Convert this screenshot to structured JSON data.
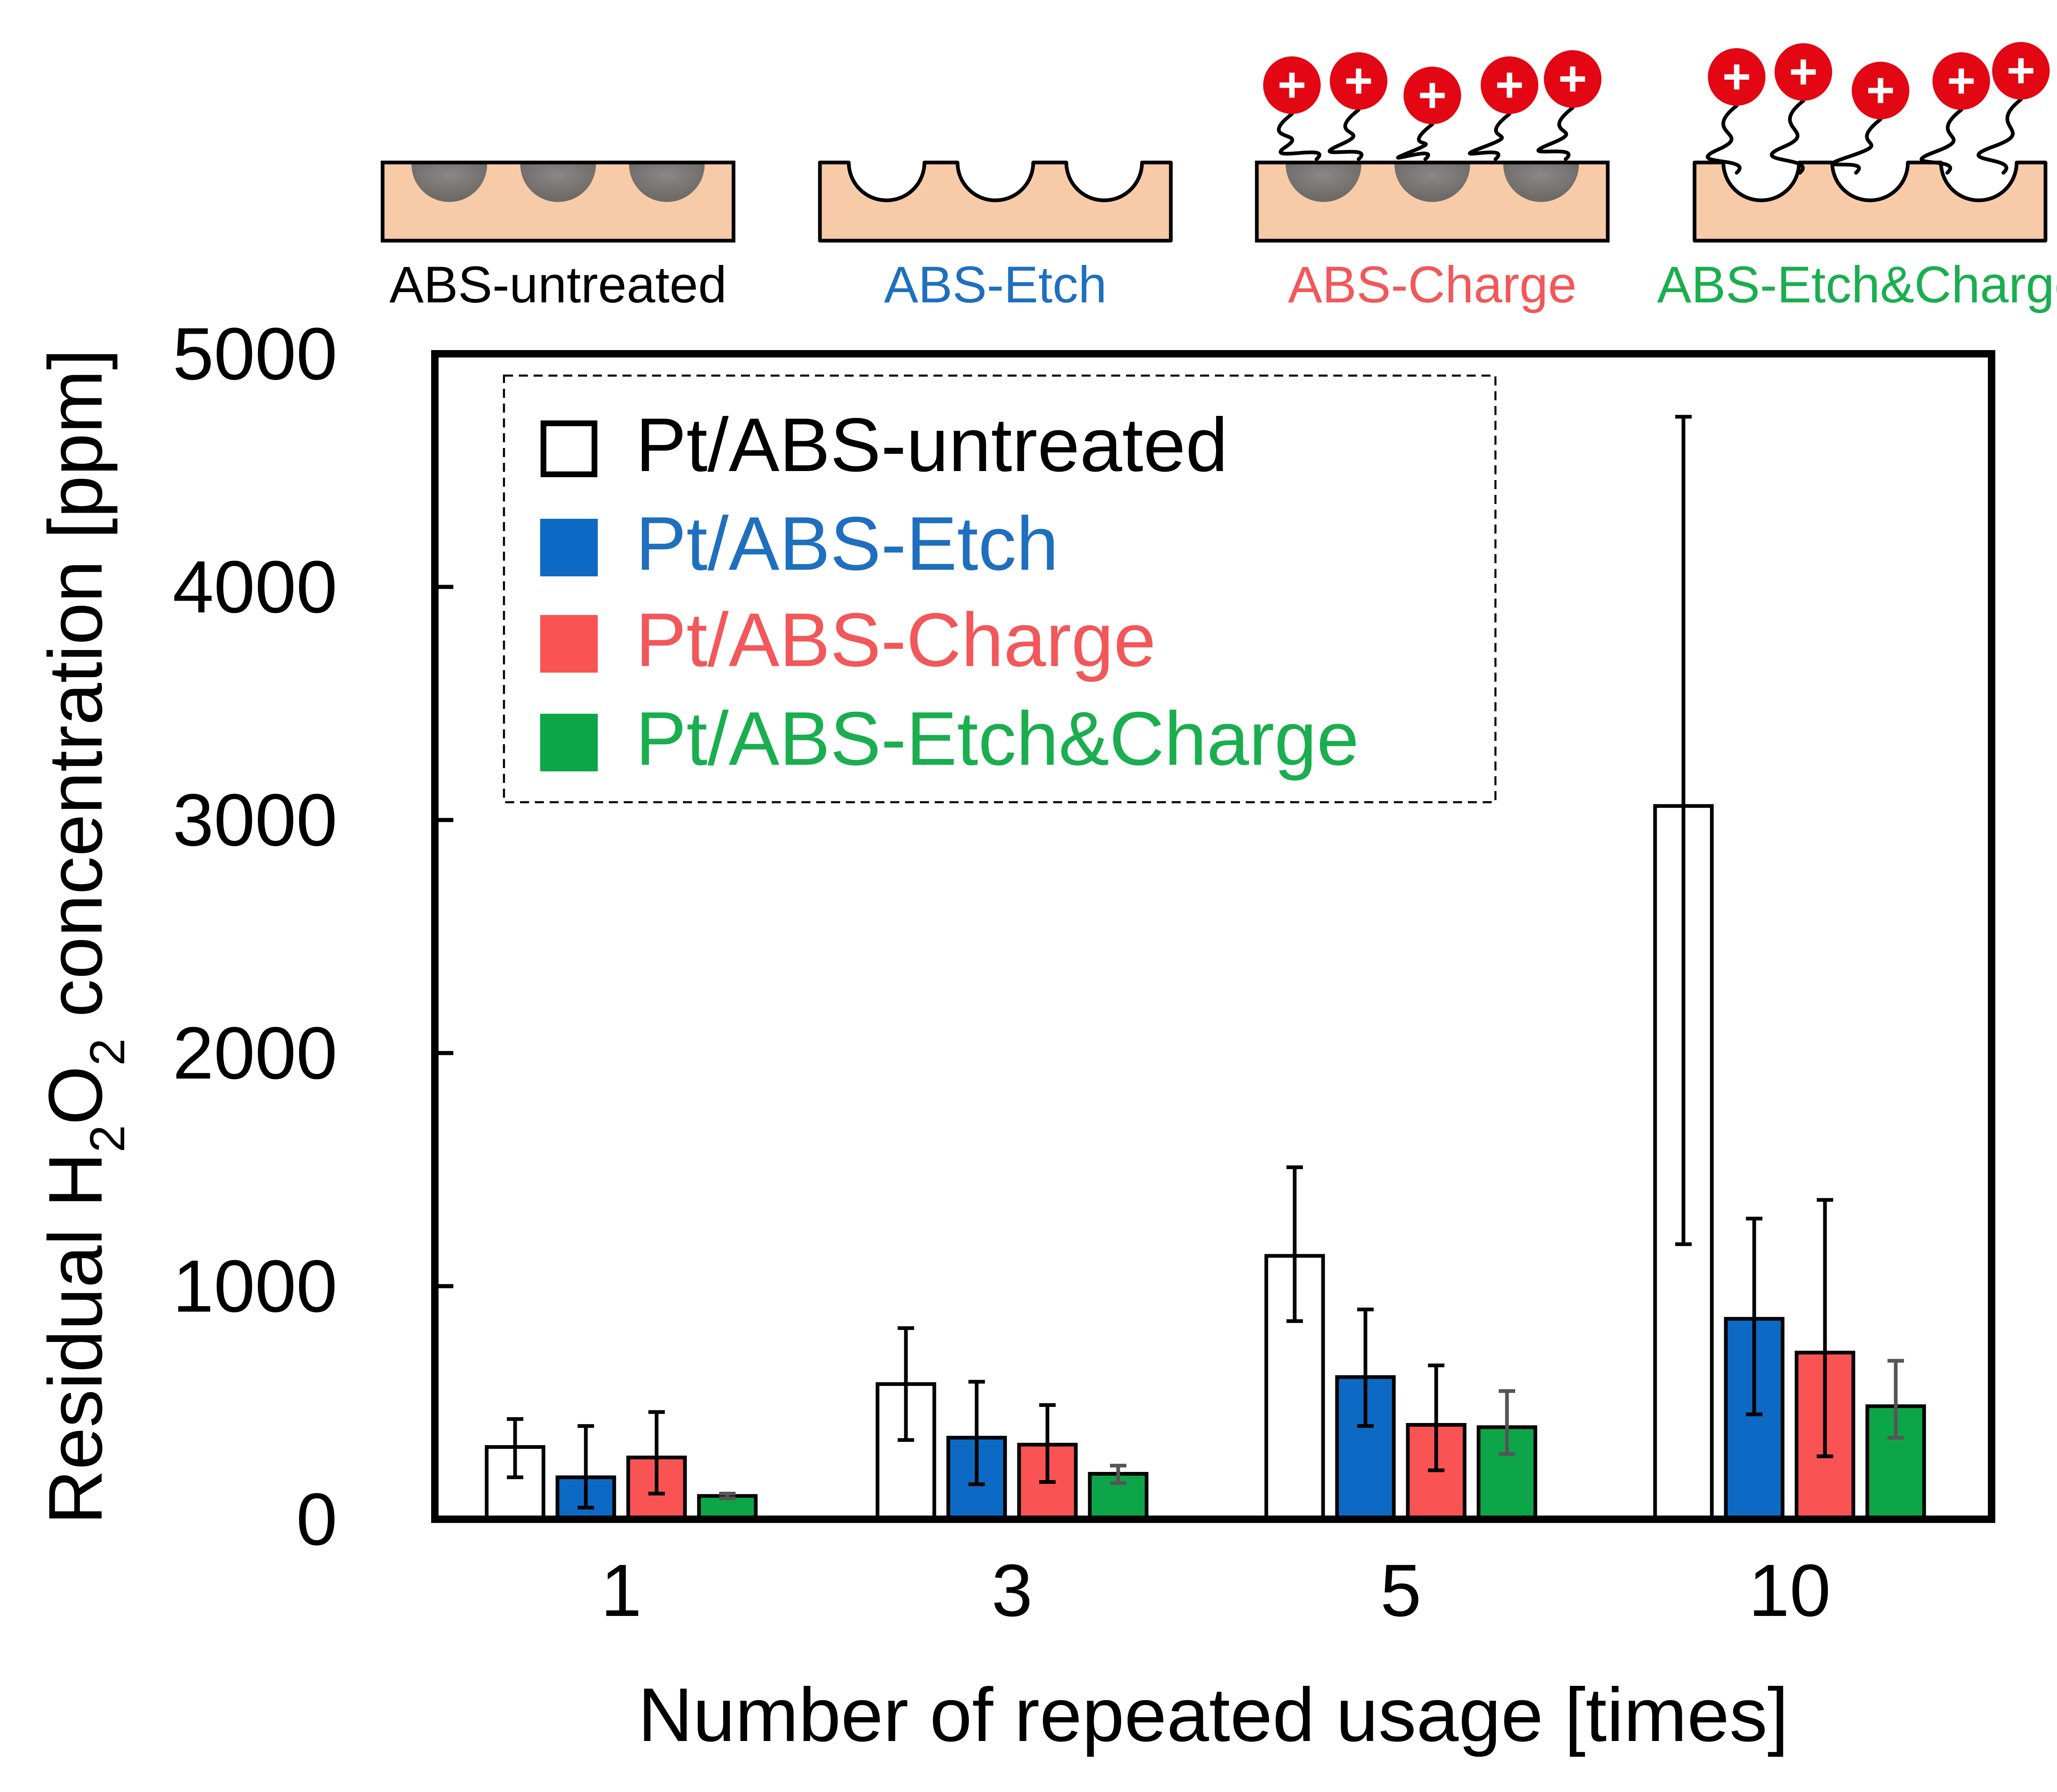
{
  "schematics": [
    {
      "label": "ABS-untreated",
      "color": "#000000",
      "pits": "filled",
      "charges": "none"
    },
    {
      "label": "ABS-Etch",
      "color": "#1f6fbf",
      "pits": "empty",
      "charges": "none"
    },
    {
      "label": "ABS-Charge",
      "color": "#f2575a",
      "pits": "filled",
      "charges": "plus"
    },
    {
      "label": "ABS-Etch&Charge",
      "color": "#1aae4f",
      "pits": "empty",
      "charges": "plus"
    }
  ],
  "charge_symbol": "+",
  "chart_data": {
    "type": "bar",
    "xlabel": "Number of repeated usage [times]",
    "ylabel_parts": [
      "Residual H",
      "2",
      "O",
      "2",
      " concentration [ppm]"
    ],
    "ylim": [
      0,
      5000
    ],
    "yticks": [
      "0",
      "1000",
      "2000",
      "3000",
      "4000",
      "5000"
    ],
    "categories": [
      "1",
      "3",
      "5",
      "10"
    ],
    "grid": false,
    "legend_position": "top-left",
    "series": [
      {
        "name": "Pt/ABS-untreated",
        "fill": "#ffffff",
        "text_color": "#000000",
        "values": [
          310,
          580,
          1130,
          3060
        ],
        "err_low": [
          180,
          340,
          850,
          1180
        ],
        "err_high": [
          430,
          820,
          1510,
          4730
        ]
      },
      {
        "name": "Pt/ABS-Etch",
        "fill": "#0d6ac4",
        "text_color": "#1f6fbf",
        "values": [
          180,
          350,
          610,
          860
        ],
        "err_low": [
          50,
          150,
          400,
          450
        ],
        "err_high": [
          400,
          590,
          900,
          1290
        ]
      },
      {
        "name": "Pt/ABS-Charge",
        "fill": "#fa5353",
        "text_color": "#f2575a",
        "values": [
          265,
          320,
          405,
          715
        ],
        "err_low": [
          110,
          160,
          210,
          270
        ],
        "err_high": [
          460,
          490,
          660,
          1370
        ]
      },
      {
        "name": "Pt/ABS-Etch&Charge",
        "fill": "#0ca649",
        "text_color": "#1aae4f",
        "values": [
          100,
          195,
          395,
          485
        ],
        "err_low": [
          90,
          155,
          280,
          350
        ],
        "err_high": [
          110,
          230,
          550,
          680
        ]
      }
    ]
  }
}
